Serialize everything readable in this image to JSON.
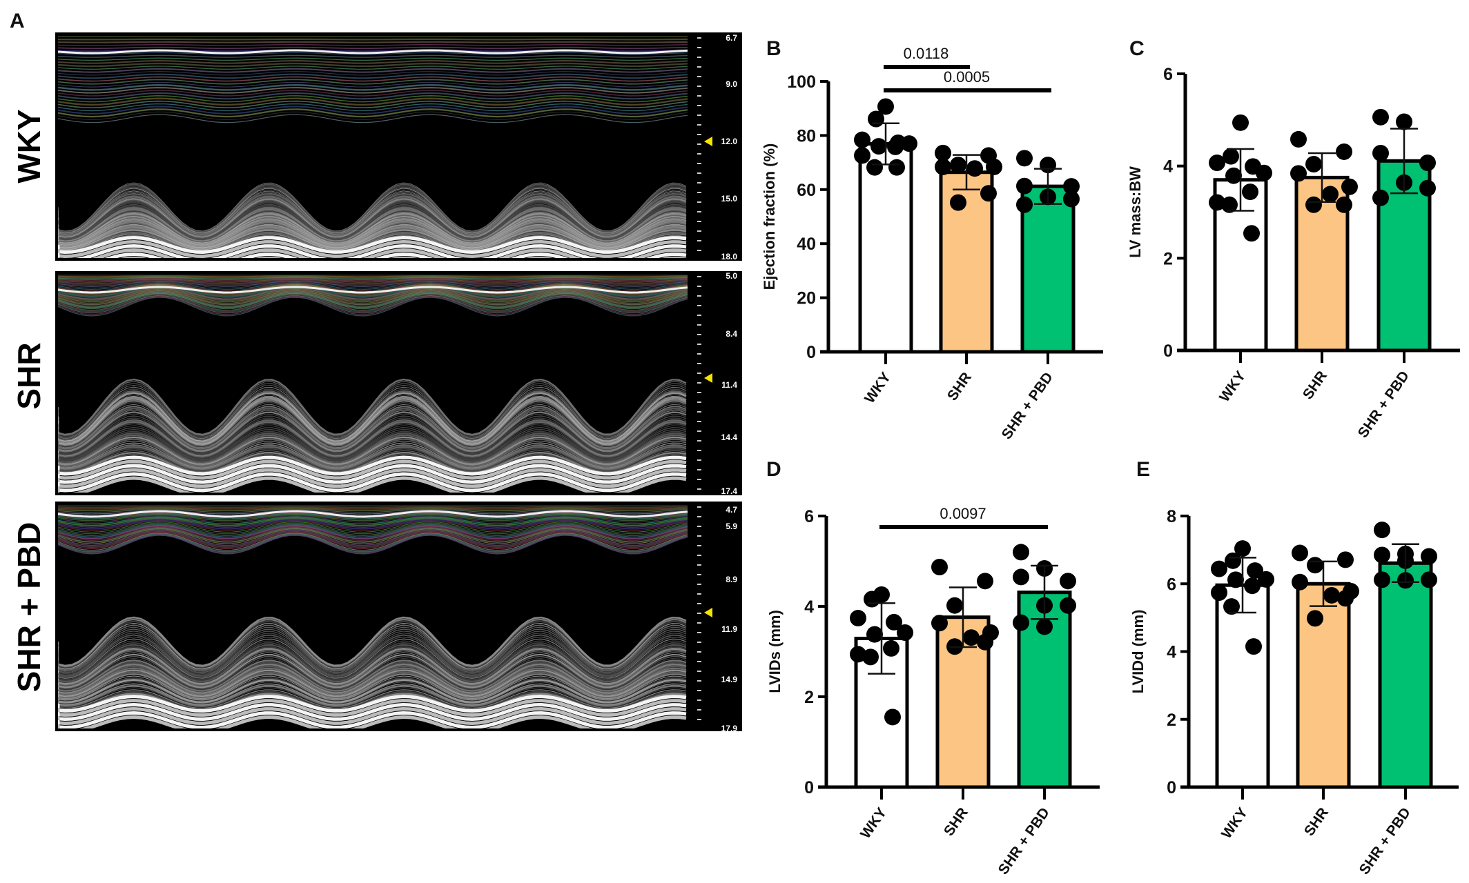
{
  "panel_a": {
    "letter": "A",
    "rows": [
      {
        "label": "WKY",
        "scale": [
          "6.7",
          "9.0",
          "12.0",
          "15.0",
          "18.0"
        ]
      },
      {
        "label": "SHR",
        "scale": [
          "5.0",
          "8.4",
          "11.4",
          "14.4",
          "17.4"
        ]
      },
      {
        "label": "SHR + PBD",
        "scale": [
          "4.7",
          "5.9",
          "8.9",
          "11.9",
          "14.9",
          "17.9"
        ]
      }
    ],
    "marker_color": "#f5e400"
  },
  "colors": {
    "WKY": "#ffffff",
    "SHR": "#fdc583",
    "SHR + PBD": "#00c072"
  },
  "chart_data": [
    {
      "panel": "B",
      "type": "bar",
      "ylabel": "Ejection fraction (%)",
      "ylim": [
        0,
        100
      ],
      "yticks": [
        "0",
        "20",
        "40",
        "60",
        "80",
        "100"
      ],
      "categories": [
        "WKY",
        "SHR",
        "SHR + PBD"
      ],
      "means": [
        76.9,
        66.4,
        61.2
      ],
      "sd": [
        7.6,
        6.4,
        6.5
      ],
      "points": [
        [
          90.7,
          86.1,
          78.4,
          77.3,
          77.0,
          76.0,
          75.8,
          72.6,
          68.2,
          68.2
        ],
        [
          73.5,
          72.6,
          69.1,
          68.4,
          68.4,
          67.8,
          58.6,
          55.2
        ],
        [
          71.6,
          69.1,
          61.3,
          61.2,
          57.3,
          56.5,
          54.4
        ]
      ],
      "comparisons": [
        {
          "from": "WKY",
          "to": "SHR",
          "p": "0.0118"
        },
        {
          "from": "WKY",
          "to": "SHR + PBD",
          "p": "0.0005"
        }
      ]
    },
    {
      "panel": "C",
      "type": "bar",
      "ylabel": "LV mass:BW",
      "ylim": [
        0,
        6
      ],
      "yticks": [
        "0",
        "2",
        "4",
        "6"
      ],
      "categories": [
        "WKY",
        "SHR",
        "SHR + PBD"
      ],
      "means": [
        3.7,
        3.75,
        4.11
      ],
      "sd": [
        0.67,
        0.53,
        0.7
      ],
      "points": [
        [
          4.94,
          4.21,
          4.07,
          3.99,
          3.85,
          3.79,
          3.44,
          3.21,
          3.16,
          2.54
        ],
        [
          4.58,
          4.31,
          4.04,
          3.84,
          3.55,
          3.39,
          3.16,
          3.16
        ],
        [
          5.06,
          4.96,
          4.28,
          4.07,
          3.64,
          3.52,
          3.31
        ]
      ],
      "comparisons": []
    },
    {
      "panel": "D",
      "type": "bar",
      "ylabel": "LVIDs (mm)",
      "ylim": [
        0,
        6
      ],
      "yticks": [
        "0",
        "2",
        "4",
        "6"
      ],
      "categories": [
        "WKY",
        "SHR",
        "SHR + PBD"
      ],
      "means": [
        3.29,
        3.76,
        4.31
      ],
      "sd": [
        0.78,
        0.66,
        0.59
      ],
      "points": [
        [
          4.26,
          4.16,
          3.74,
          3.65,
          3.42,
          3.38,
          3.07,
          2.94,
          2.88,
          1.55
        ],
        [
          4.87,
          4.56,
          4.02,
          3.63,
          3.42,
          3.31,
          3.21,
          3.11
        ],
        [
          5.2,
          4.84,
          4.65,
          4.56,
          4.02,
          4.02,
          3.64,
          3.55
        ]
      ],
      "comparisons": [
        {
          "from": "WKY",
          "to": "SHR + PBD",
          "p": "0.0097"
        }
      ]
    },
    {
      "panel": "E",
      "type": "bar",
      "ylabel": "LVIDd (mm)",
      "ylim": [
        0,
        8
      ],
      "yticks": [
        "0",
        "2",
        "4",
        "6",
        "8"
      ],
      "categories": [
        "WKY",
        "SHR",
        "SHR + PBD"
      ],
      "means": [
        5.96,
        6.0,
        6.61
      ],
      "sd": [
        0.81,
        0.66,
        0.56
      ],
      "points": [
        [
          7.04,
          6.68,
          6.44,
          6.39,
          6.13,
          6.12,
          5.94,
          5.74,
          5.33,
          4.15
        ],
        [
          6.91,
          6.71,
          6.55,
          6.05,
          5.78,
          5.66,
          5.57,
          4.98
        ],
        [
          7.59,
          6.88,
          6.85,
          6.81,
          6.68,
          6.12,
          6.12,
          6.1
        ]
      ],
      "comparisons": []
    }
  ]
}
